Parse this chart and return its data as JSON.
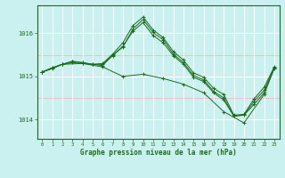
{
  "title": "Graphe pression niveau de la mer (hPa)",
  "bg_color": "#caf0f0",
  "grid_color": "#ffffff",
  "line_color": "#1a6b1a",
  "ylabel_ticks": [
    1014,
    1015,
    1016
  ],
  "xlim": [
    -0.5,
    23.5
  ],
  "ylim": [
    1013.55,
    1016.65
  ],
  "series1": {
    "x": [
      0,
      1,
      2,
      3,
      4,
      5,
      6,
      7,
      8,
      9,
      10,
      11,
      12,
      13,
      14,
      15,
      16,
      17,
      18,
      19,
      20,
      21,
      22,
      23
    ],
    "y": [
      1015.1,
      1015.2,
      1015.28,
      1015.35,
      1015.32,
      1015.28,
      1015.3,
      1015.52,
      1015.78,
      1016.18,
      1016.38,
      1016.08,
      1015.9,
      1015.58,
      1015.38,
      1015.08,
      1014.98,
      1014.72,
      1014.58,
      1014.1,
      1014.12,
      1014.48,
      1014.75,
      1015.22
    ]
  },
  "series2": {
    "x": [
      0,
      1,
      2,
      3,
      4,
      5,
      6,
      7,
      8,
      9,
      10,
      11,
      12,
      13,
      14,
      15,
      16,
      17,
      18,
      19,
      20,
      21,
      22,
      23
    ],
    "y": [
      1015.1,
      1015.2,
      1015.28,
      1015.32,
      1015.3,
      1015.28,
      1015.28,
      1015.48,
      1015.7,
      1016.05,
      1016.25,
      1015.95,
      1015.78,
      1015.48,
      1015.28,
      1014.98,
      1014.88,
      1014.62,
      1014.45,
      1014.08,
      1014.1,
      1014.35,
      1014.62,
      1015.18
    ]
  },
  "series3": {
    "x": [
      0,
      1,
      2,
      3,
      4,
      5,
      6,
      7,
      8,
      9,
      10,
      11,
      12,
      13,
      14,
      15,
      16,
      17,
      18,
      19,
      20,
      21,
      22,
      23
    ],
    "y": [
      1015.1,
      1015.18,
      1015.28,
      1015.35,
      1015.32,
      1015.28,
      1015.25,
      1015.5,
      1015.68,
      1016.1,
      1016.32,
      1016.02,
      1015.85,
      1015.52,
      1015.32,
      1015.02,
      1014.92,
      1014.65,
      1014.5,
      1014.08,
      1014.1,
      1014.42,
      1014.68,
      1015.2
    ]
  },
  "series4": {
    "x": [
      0,
      2,
      4,
      6,
      8,
      10,
      12,
      14,
      16,
      18,
      20,
      22,
      23
    ],
    "y": [
      1015.1,
      1015.28,
      1015.3,
      1015.22,
      1015.0,
      1015.05,
      1014.95,
      1014.82,
      1014.62,
      1014.18,
      1013.92,
      1014.58,
      1015.2
    ]
  }
}
